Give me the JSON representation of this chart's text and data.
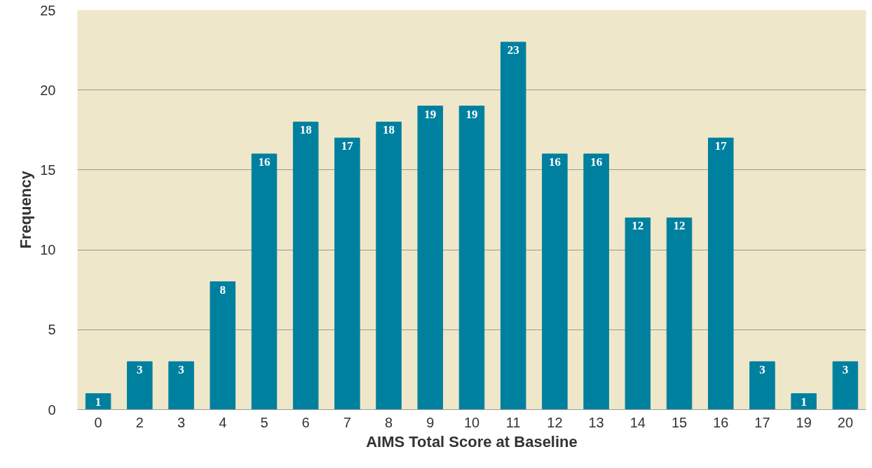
{
  "chart_data": {
    "type": "bar",
    "xlabel": "AIMS Total Score at Baseline",
    "ylabel": "Frequency",
    "categories": [
      "0",
      "2",
      "3",
      "4",
      "5",
      "6",
      "7",
      "8",
      "9",
      "10",
      "11",
      "12",
      "13",
      "14",
      "15",
      "16",
      "17",
      "19",
      "20"
    ],
    "values": [
      1,
      3,
      3,
      8,
      16,
      18,
      17,
      18,
      19,
      19,
      23,
      16,
      16,
      12,
      12,
      17,
      3,
      1,
      3
    ],
    "color": "#00809f",
    "ylim": [
      0,
      25
    ],
    "yticks": [
      0,
      5,
      10,
      15,
      20,
      25
    ],
    "grid": "y",
    "data_labels": true
  }
}
